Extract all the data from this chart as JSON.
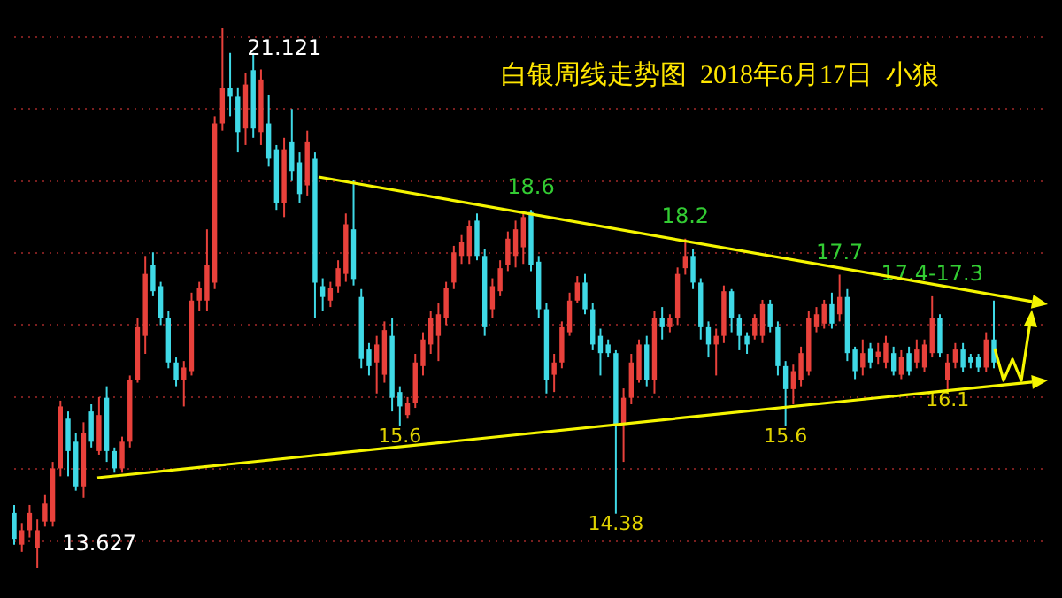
{
  "chart_data": {
    "type": "candlestick",
    "title": "白银周线走势图  2018年6月17日  小狼",
    "categories": [
      null,
      null,
      null,
      null,
      null,
      null,
      null,
      null,
      null,
      null,
      null,
      null,
      null,
      null,
      null,
      null,
      null,
      null,
      null,
      null,
      null,
      null,
      null,
      null,
      null,
      null,
      null,
      null,
      null,
      null,
      null,
      null,
      null,
      null,
      null,
      null,
      null,
      null,
      null,
      null,
      null,
      null,
      null,
      null,
      null,
      null,
      null,
      null,
      null,
      null,
      null,
      null,
      null,
      null,
      null,
      null,
      null,
      null,
      null,
      null,
      null,
      null,
      null,
      null,
      null,
      null,
      null,
      null,
      null,
      null,
      null,
      null,
      null,
      null,
      null,
      null,
      null,
      null,
      null,
      null,
      null,
      null,
      null,
      null,
      null,
      null,
      null,
      null,
      null,
      null,
      null,
      null,
      null,
      null,
      null,
      null,
      null,
      null,
      null,
      null,
      null,
      null,
      null,
      null,
      null,
      null,
      null,
      null,
      null,
      null,
      null,
      null,
      null,
      null,
      null,
      null,
      null,
      null,
      null,
      null,
      null,
      null,
      null,
      null,
      null,
      null,
      null,
      null,
      null,
      null,
      null,
      null,
      null,
      null,
      null
    ],
    "ohlc": [
      [
        14.39,
        14.5,
        13.95,
        14.03
      ],
      [
        13.95,
        14.25,
        13.85,
        14.15
      ],
      [
        14.15,
        14.5,
        14.05,
        14.39
      ],
      [
        13.9,
        14.3,
        13.627,
        14.15
      ],
      [
        14.27,
        14.65,
        14.2,
        14.52
      ],
      [
        14.27,
        15.1,
        14.2,
        15.01
      ],
      [
        15.01,
        15.95,
        14.9,
        15.87
      ],
      [
        15.7,
        15.8,
        14.9,
        15.25
      ],
      [
        15.38,
        15.5,
        14.7,
        14.76
      ],
      [
        14.76,
        15.65,
        14.6,
        15.5
      ],
      [
        15.8,
        15.9,
        15.3,
        15.38
      ],
      [
        15.25,
        16.0,
        15.2,
        15.75
      ],
      [
        15.99,
        16.15,
        15.1,
        15.25
      ],
      [
        15.25,
        15.3,
        14.95,
        15.01
      ],
      [
        15.01,
        15.45,
        14.95,
        15.38
      ],
      [
        15.38,
        16.3,
        15.3,
        16.24
      ],
      [
        16.24,
        17.1,
        16.2,
        16.97
      ],
      [
        16.85,
        17.96,
        16.6,
        17.71
      ],
      [
        17.83,
        18.01,
        17.4,
        17.47
      ],
      [
        17.54,
        17.6,
        17.0,
        17.1
      ],
      [
        17.1,
        17.2,
        16.4,
        16.48
      ],
      [
        16.48,
        16.55,
        16.15,
        16.24
      ],
      [
        16.24,
        16.5,
        15.87,
        16.41
      ],
      [
        16.36,
        17.45,
        16.3,
        17.34
      ],
      [
        17.34,
        17.6,
        17.2,
        17.52
      ],
      [
        17.34,
        18.33,
        17.2,
        17.83
      ],
      [
        17.59,
        19.9,
        17.5,
        19.8
      ],
      [
        19.8,
        21.121,
        19.7,
        20.29
      ],
      [
        20.29,
        20.78,
        19.9,
        20.17
      ],
      [
        20.17,
        20.3,
        19.4,
        19.68
      ],
      [
        19.73,
        20.5,
        19.5,
        20.34
      ],
      [
        20.54,
        20.78,
        19.6,
        19.73
      ],
      [
        19.68,
        20.55,
        19.5,
        20.41
      ],
      [
        19.8,
        20.2,
        19.2,
        19.31
      ],
      [
        19.43,
        19.5,
        18.6,
        18.69
      ],
      [
        18.69,
        19.6,
        18.5,
        19.43
      ],
      [
        19.55,
        20.0,
        19.0,
        19.14
      ],
      [
        19.26,
        19.4,
        18.7,
        18.82
      ],
      [
        18.94,
        19.7,
        18.8,
        19.55
      ],
      [
        19.31,
        19.4,
        17.1,
        17.59
      ],
      [
        17.54,
        17.65,
        17.2,
        17.39
      ],
      [
        17.34,
        17.6,
        17.25,
        17.52
      ],
      [
        17.54,
        17.9,
        17.45,
        17.79
      ],
      [
        17.71,
        18.55,
        17.6,
        18.4
      ],
      [
        18.33,
        19.01,
        17.55,
        17.64
      ],
      [
        17.39,
        17.5,
        16.4,
        16.53
      ],
      [
        16.66,
        16.75,
        16.3,
        16.43
      ],
      [
        16.48,
        16.85,
        16.05,
        16.73
      ],
      [
        16.31,
        17.05,
        16.2,
        16.93
      ],
      [
        16.85,
        17.1,
        15.8,
        15.99
      ],
      [
        16.07,
        16.15,
        15.6,
        15.87
      ],
      [
        15.75,
        16.0,
        15.7,
        15.92
      ],
      [
        15.92,
        16.6,
        15.85,
        16.48
      ],
      [
        16.43,
        16.9,
        16.3,
        16.8
      ],
      [
        16.73,
        17.2,
        16.6,
        17.1
      ],
      [
        16.85,
        17.3,
        16.5,
        17.15
      ],
      [
        17.1,
        17.6,
        17.0,
        17.52
      ],
      [
        17.59,
        18.1,
        17.5,
        18.01
      ],
      [
        17.96,
        18.25,
        17.85,
        18.15
      ],
      [
        17.96,
        18.45,
        17.85,
        18.38
      ],
      [
        18.45,
        18.55,
        17.9,
        17.96
      ],
      [
        17.96,
        18.05,
        16.85,
        16.97
      ],
      [
        17.22,
        17.65,
        17.1,
        17.54
      ],
      [
        17.47,
        17.9,
        17.4,
        17.79
      ],
      [
        17.83,
        18.3,
        17.75,
        18.2
      ],
      [
        17.96,
        18.45,
        17.8,
        18.33
      ],
      [
        18.08,
        18.55,
        17.85,
        18.5
      ],
      [
        18.57,
        18.6,
        17.75,
        17.83
      ],
      [
        17.88,
        17.96,
        17.1,
        17.22
      ],
      [
        17.22,
        17.3,
        16.05,
        16.24
      ],
      [
        16.31,
        16.6,
        16.07,
        16.48
      ],
      [
        16.48,
        17.05,
        16.4,
        16.97
      ],
      [
        16.9,
        17.45,
        16.85,
        17.34
      ],
      [
        17.34,
        17.68,
        17.3,
        17.59
      ],
      [
        17.59,
        17.71,
        17.15,
        17.22
      ],
      [
        17.22,
        17.3,
        16.65,
        16.73
      ],
      [
        16.85,
        16.95,
        16.3,
        16.61
      ],
      [
        16.73,
        16.8,
        16.55,
        16.61
      ],
      [
        16.61,
        16.65,
        14.38,
        15.62
      ],
      [
        15.62,
        16.12,
        15.1,
        15.99
      ],
      [
        15.99,
        16.6,
        15.9,
        16.48
      ],
      [
        16.24,
        16.8,
        16.2,
        16.73
      ],
      [
        16.73,
        16.85,
        16.15,
        16.24
      ],
      [
        16.24,
        17.2,
        16.05,
        17.1
      ],
      [
        17.1,
        17.25,
        16.8,
        16.97
      ],
      [
        16.97,
        17.15,
        16.9,
        17.1
      ],
      [
        17.1,
        17.8,
        17.0,
        17.71
      ],
      [
        17.79,
        18.2,
        17.7,
        17.96
      ],
      [
        17.96,
        18.05,
        17.5,
        17.59
      ],
      [
        17.59,
        17.65,
        16.8,
        16.97
      ],
      [
        16.97,
        17.05,
        16.55,
        16.73
      ],
      [
        16.73,
        16.95,
        16.3,
        16.85
      ],
      [
        16.85,
        17.55,
        16.75,
        17.47
      ],
      [
        17.47,
        17.5,
        16.9,
        17.1
      ],
      [
        17.1,
        17.15,
        16.65,
        16.85
      ],
      [
        16.85,
        16.9,
        16.6,
        16.73
      ],
      [
        16.85,
        17.15,
        16.8,
        17.1
      ],
      [
        16.85,
        17.35,
        16.75,
        17.29
      ],
      [
        17.29,
        17.35,
        16.9,
        16.97
      ],
      [
        16.97,
        17.05,
        16.3,
        16.43
      ],
      [
        16.43,
        16.5,
        15.6,
        16.11
      ],
      [
        16.11,
        16.45,
        15.9,
        16.36
      ],
      [
        16.24,
        16.7,
        16.15,
        16.61
      ],
      [
        16.36,
        17.2,
        16.3,
        17.1
      ],
      [
        16.97,
        17.25,
        16.9,
        17.15
      ],
      [
        17.02,
        17.35,
        16.95,
        17.29
      ],
      [
        17.29,
        17.45,
        16.95,
        17.02
      ],
      [
        17.15,
        17.7,
        17.05,
        17.39
      ],
      [
        17.39,
        17.5,
        16.5,
        16.61
      ],
      [
        16.66,
        16.7,
        16.25,
        16.36
      ],
      [
        16.41,
        16.8,
        16.3,
        16.61
      ],
      [
        16.68,
        16.75,
        16.4,
        16.48
      ],
      [
        16.56,
        16.75,
        16.45,
        16.63
      ],
      [
        16.48,
        16.85,
        16.4,
        16.75
      ],
      [
        16.61,
        16.7,
        16.3,
        16.36
      ],
      [
        16.31,
        16.65,
        16.25,
        16.56
      ],
      [
        16.61,
        16.7,
        16.3,
        16.36
      ],
      [
        16.48,
        16.8,
        16.4,
        16.66
      ],
      [
        16.41,
        16.8,
        16.35,
        16.73
      ],
      [
        16.61,
        17.4,
        16.55,
        17.1
      ],
      [
        17.1,
        17.15,
        16.55,
        16.61
      ],
      [
        16.24,
        16.6,
        16.1,
        16.48
      ],
      [
        16.48,
        16.75,
        16.4,
        16.66
      ],
      [
        16.66,
        16.75,
        16.35,
        16.41
      ],
      [
        16.56,
        16.6,
        16.4,
        16.48
      ],
      [
        16.56,
        16.6,
        16.35,
        16.41
      ],
      [
        16.41,
        16.9,
        16.35,
        16.8
      ],
      [
        16.8,
        17.34,
        16.4,
        16.48
      ],
      null,
      null,
      null,
      null,
      null,
      null,
      null
    ],
    "colors": [
      "#3fd9e6",
      "#e8413b",
      "#e8413b",
      "#e8413b",
      "#e8413b",
      "#e8413b",
      "#e8413b",
      "#3fd9e6",
      "#3fd9e6",
      "#e8413b",
      "#3fd9e6",
      "#e8413b",
      "#3fd9e6",
      "#3fd9e6",
      "#e8413b",
      "#e8413b",
      "#e8413b",
      "#e8413b",
      "#3fd9e6",
      "#3fd9e6",
      "#3fd9e6",
      "#3fd9e6",
      "#e8413b",
      "#e8413b",
      "#e8413b",
      "#e8413b",
      "#e8413b",
      "#e8413b",
      "#3fd9e6",
      "#3fd9e6",
      "#e8413b",
      "#3fd9e6",
      "#e8413b",
      "#3fd9e6",
      "#3fd9e6",
      "#e8413b",
      "#3fd9e6",
      "#3fd9e6",
      "#e8413b",
      "#3fd9e6",
      "#3fd9e6",
      "#e8413b",
      "#e8413b",
      "#e8413b",
      "#3fd9e6",
      "#3fd9e6",
      "#3fd9e6",
      "#e8413b",
      "#e8413b",
      "#3fd9e6",
      "#3fd9e6",
      "#e8413b",
      "#e8413b",
      "#e8413b",
      "#e8413b",
      "#e8413b",
      "#e8413b",
      "#e8413b",
      "#e8413b",
      "#e8413b",
      "#3fd9e6",
      "#3fd9e6",
      "#e8413b",
      "#e8413b",
      "#e8413b",
      "#e8413b",
      "#e8413b",
      "#3fd9e6",
      "#3fd9e6",
      "#3fd9e6",
      "#e8413b",
      "#e8413b",
      "#e8413b",
      "#e8413b",
      "#3fd9e6",
      "#3fd9e6",
      "#3fd9e6",
      "#3fd9e6",
      "#3fd9e6",
      "#e8413b",
      "#e8413b",
      "#e8413b",
      "#3fd9e6",
      "#e8413b",
      "#3fd9e6",
      "#e8413b",
      "#e8413b",
      "#e8413b",
      "#3fd9e6",
      "#3fd9e6",
      "#3fd9e6",
      "#e8413b",
      "#e8413b",
      "#3fd9e6",
      "#3fd9e6",
      "#3fd9e6",
      "#e8413b",
      "#e8413b",
      "#3fd9e6",
      "#3fd9e6",
      "#3fd9e6",
      "#e8413b",
      "#e8413b",
      "#e8413b",
      "#e8413b",
      "#e8413b",
      "#3fd9e6",
      "#e8413b",
      "#3fd9e6",
      "#3fd9e6",
      "#e8413b",
      "#3fd9e6",
      "#e8413b",
      "#e8413b",
      "#3fd9e6",
      "#e8413b",
      "#3fd9e6",
      "#e8413b",
      "#e8413b",
      "#e8413b",
      "#3fd9e6",
      "#e8413b",
      "#e8413b",
      "#3fd9e6",
      "#3fd9e6",
      "#3fd9e6",
      "#e8413b",
      "#3fd9e6",
      null,
      null,
      null,
      null,
      null,
      null,
      null
    ],
    "yticks": [
      {
        "value": 14,
        "label": null
      },
      {
        "value": 15,
        "label": null
      },
      {
        "value": 16,
        "label": null
      },
      {
        "value": 17,
        "label": null
      },
      {
        "value": 18,
        "label": null
      },
      {
        "value": 19,
        "label": null
      },
      {
        "value": 20,
        "label": null
      },
      {
        "value": 21,
        "label": null
      }
    ],
    "grid": "y",
    "annotations": [
      "21.121",
      "13.627",
      {
        "text": "18.6",
        "y": 18.6
      },
      {
        "text": "18.2",
        "y": 18.2
      },
      {
        "text": "17.7",
        "y": 17.7
      },
      {
        "text": "17.4-17.3",
        "y": 17.4
      },
      {
        "text": "15.6",
        "y": 15.6
      },
      {
        "text": "14.38",
        "y": 14.38
      },
      {
        "text": "15.6",
        "y": 15.6
      },
      {
        "text": "16.1",
        "y": 16.1
      }
    ]
  }
}
